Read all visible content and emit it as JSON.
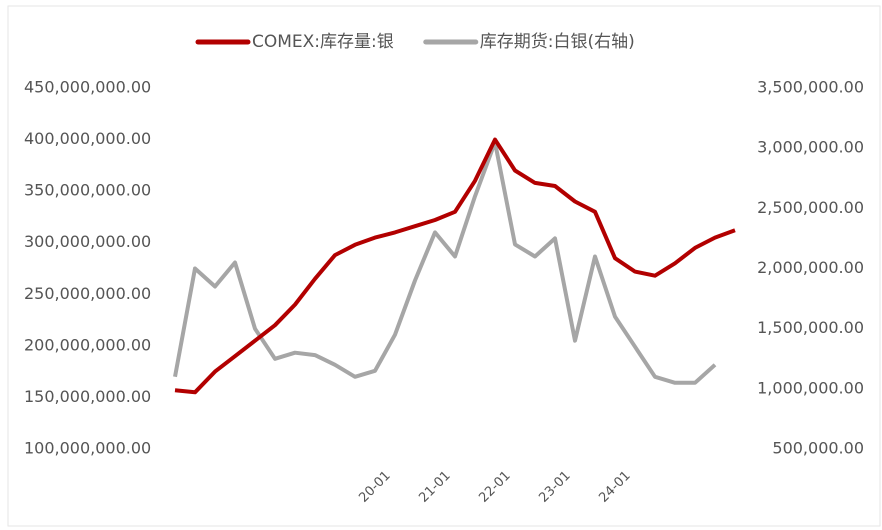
{
  "chart_data": {
    "type": "line",
    "categories": [
      null,
      null,
      null,
      null,
      null,
      null,
      null,
      null,
      null,
      null,
      "20-01",
      null,
      null,
      "21-01",
      null,
      null,
      "22-01",
      null,
      null,
      "23-01",
      null,
      null,
      "24-01",
      null,
      null,
      null,
      null,
      null,
      null
    ],
    "series": [
      {
        "name": "COMEX:库存量:银",
        "color": "#b20000",
        "axis": "y",
        "values": [
          157000000,
          155000000,
          175000000,
          190000000,
          205000000,
          220000000,
          240000000,
          265000000,
          288000000,
          298000000,
          305000000,
          310000000,
          316000000,
          322000000,
          330000000,
          360000000,
          400000000,
          370000000,
          358000000,
          355000000,
          340000000,
          330000000,
          285000000,
          272000000,
          268000000,
          280000000,
          295000000,
          305000000,
          312000000
        ]
      },
      {
        "name": "库存期货:白银(右轴)",
        "color": "#a6a6a6",
        "axis": "y2",
        "values": [
          1100000,
          2000000,
          1850000,
          2050000,
          1500000,
          1250000,
          1300000,
          1280000,
          1200000,
          1100000,
          1150000,
          1450000,
          1900000,
          2300000,
          2100000,
          2600000,
          3050000,
          2200000,
          2100000,
          2250000,
          1400000,
          2100000,
          1600000,
          1350000,
          1100000,
          1050000,
          1050000,
          1200000,
          null
        ]
      }
    ],
    "ylim": [
      100000000,
      450000000
    ],
    "yticks": [
      {
        "value": 100000000,
        "label": "100,000,000.00"
      },
      {
        "value": 150000000,
        "label": "150,000,000.00"
      },
      {
        "value": 200000000,
        "label": "200,000,000.00"
      },
      {
        "value": 250000000,
        "label": "250,000,000.00"
      },
      {
        "value": 300000000,
        "label": "300,000,000.00"
      },
      {
        "value": 350000000,
        "label": "350,000,000.00"
      },
      {
        "value": 400000000,
        "label": "400,000,000.00"
      },
      {
        "value": 450000000,
        "label": "450,000,000.00"
      }
    ],
    "y2lim": [
      500000,
      3500000
    ],
    "y2ticks": [
      {
        "value": 500000,
        "label": "500,000.00"
      },
      {
        "value": 1000000,
        "label": "1,000,000.00"
      },
      {
        "value": 1500000,
        "label": "1,500,000.00"
      },
      {
        "value": 2000000,
        "label": "2,000,000.00"
      },
      {
        "value": 2500000,
        "label": "2,500,000.00"
      },
      {
        "value": 3000000,
        "label": "3,000,000.00"
      },
      {
        "value": 3500000,
        "label": "3,500,000.00"
      }
    ],
    "legend": "top"
  }
}
